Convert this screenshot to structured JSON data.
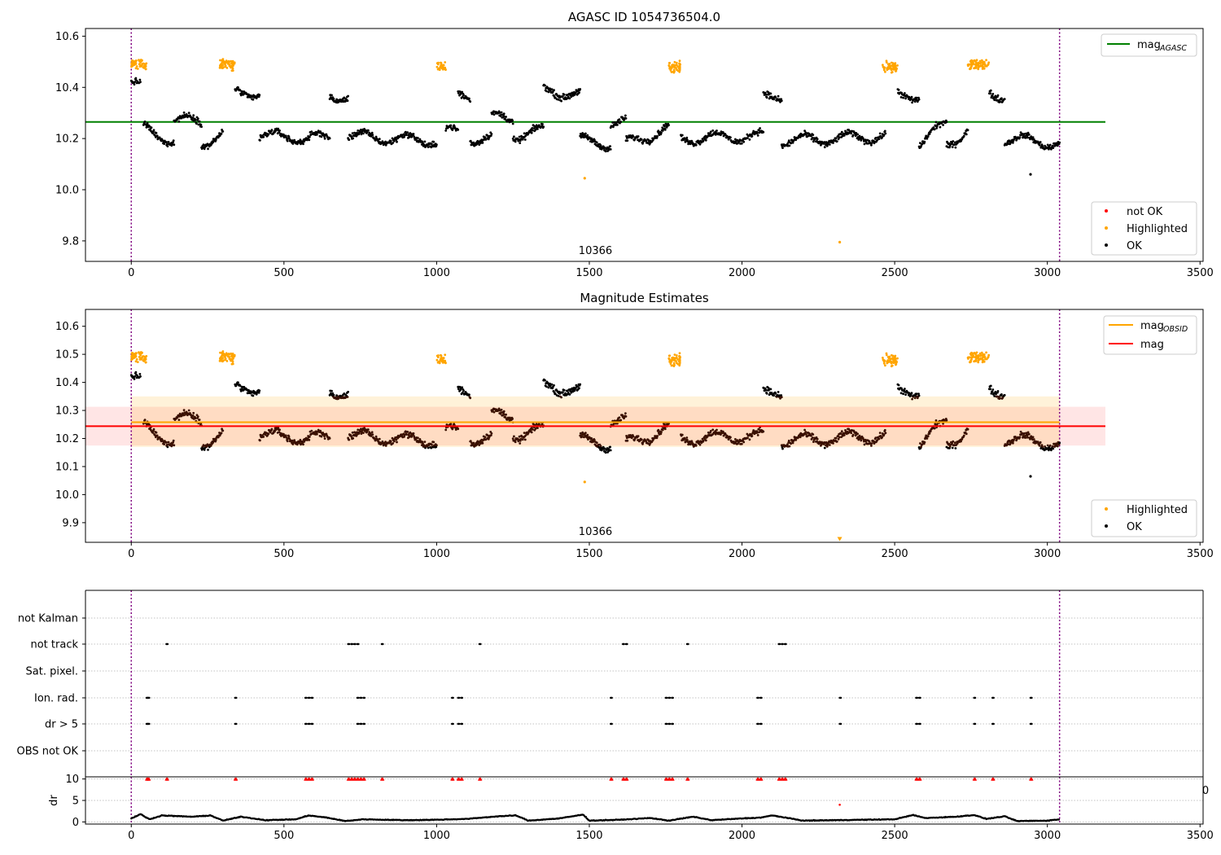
{
  "chart_data": [
    {
      "type": "scatter",
      "title": "AGASC ID 1054736504.0",
      "xlim": [
        -150,
        3510
      ],
      "ylim": [
        9.72,
        10.63
      ],
      "xticks": [
        0,
        500,
        1000,
        1500,
        2000,
        2500,
        3000,
        3500
      ],
      "yticks": [
        9.8,
        10.0,
        10.2,
        10.4,
        10.6
      ],
      "ytick_labels": [
        "9.8",
        "10.0",
        "10.2",
        "10.4",
        "10.6"
      ],
      "annotation": "10366",
      "vlines": [
        0,
        3040
      ],
      "hline": {
        "name": "mag",
        "subscript": "AGASC",
        "y": 10.265,
        "x": [
          -150,
          3190
        ],
        "color": "#008000"
      },
      "legend_top": "top-right",
      "legend_bottom": "bottom-right",
      "legend_entries": [
        "not OK",
        "Highlighted",
        "OK"
      ],
      "series_colors": {
        "not OK": "#ff0000",
        "Highlighted": "#ffa500",
        "OK": "#000000"
      },
      "highlight_x_ranges": [
        [
          0,
          50
        ],
        [
          290,
          340
        ],
        [
          1000,
          1030
        ],
        [
          1760,
          1800
        ],
        [
          2460,
          2510
        ],
        [
          2740,
          2810
        ]
      ],
      "highlight_levels": [
        10.49,
        10.49,
        10.48,
        10.48,
        10.48,
        10.49
      ],
      "ok_segments": [
        {
          "x": [
            0,
            30
          ],
          "y": [
            10.42,
            10.4
          ]
        },
        {
          "x": [
            40,
            140
          ],
          "y": [
            10.24,
            10.19
          ]
        },
        {
          "x": [
            140,
            230
          ],
          "y": [
            10.27,
            10.27
          ]
        },
        {
          "x": [
            230,
            300
          ],
          "y": [
            10.18,
            10.22
          ]
        },
        {
          "x": [
            340,
            420
          ],
          "y": [
            10.38,
            10.38
          ]
        },
        {
          "x": [
            420,
            650
          ],
          "y": [
            10.21,
            10.2
          ]
        },
        {
          "x": [
            650,
            710
          ],
          "y": [
            10.36,
            10.37
          ]
        },
        {
          "x": [
            710,
            1000
          ],
          "y": [
            10.21,
            10.19
          ]
        },
        {
          "x": [
            1030,
            1070
          ],
          "y": [
            10.23,
            10.22
          ]
        },
        {
          "x": [
            1070,
            1110
          ],
          "y": [
            10.37,
            10.37
          ]
        },
        {
          "x": [
            1110,
            1180
          ],
          "y": [
            10.2,
            10.2
          ]
        },
        {
          "x": [
            1180,
            1250
          ],
          "y": [
            10.28,
            10.28
          ]
        },
        {
          "x": [
            1250,
            1350
          ],
          "y": [
            10.21,
            10.23
          ]
        },
        {
          "x": [
            1350,
            1470
          ],
          "y": [
            10.39,
            10.37
          ]
        },
        {
          "x": [
            1470,
            1570
          ],
          "y": [
            10.19,
            10.18
          ]
        },
        {
          "x": [
            1570,
            1620
          ],
          "y": [
            10.26,
            10.26
          ]
        },
        {
          "x": [
            1620,
            1760
          ],
          "y": [
            10.18,
            10.24
          ]
        },
        {
          "x": [
            1800,
            2070
          ],
          "y": [
            10.2,
            10.21
          ]
        },
        {
          "x": [
            2070,
            2130
          ],
          "y": [
            10.36,
            10.37
          ]
        },
        {
          "x": [
            2130,
            2470
          ],
          "y": [
            10.19,
            10.21
          ]
        },
        {
          "x": [
            2510,
            2580
          ],
          "y": [
            10.37,
            10.37
          ]
        },
        {
          "x": [
            2580,
            2670
          ],
          "y": [
            10.18,
            10.26
          ]
        },
        {
          "x": [
            2670,
            2740
          ],
          "y": [
            10.17,
            10.24
          ]
        },
        {
          "x": [
            2810,
            2860
          ],
          "y": [
            10.37,
            10.37
          ]
        },
        {
          "x": [
            2860,
            3040
          ],
          "y": [
            10.2,
            10.18
          ]
        }
      ],
      "outliers": [
        {
          "x": 1485,
          "y": 10.045,
          "series": "Highlighted"
        },
        {
          "x": 2320,
          "y": 9.795,
          "series": "Highlighted"
        },
        {
          "x": 2945,
          "y": 10.06,
          "series": "OK"
        }
      ]
    },
    {
      "type": "scatter",
      "title": "Magnitude Estimates",
      "xlim": [
        -150,
        3510
      ],
      "ylim": [
        9.83,
        10.66
      ],
      "xticks": [
        0,
        500,
        1000,
        1500,
        2000,
        2500,
        3000,
        3500
      ],
      "yticks": [
        9.9,
        10.0,
        10.1,
        10.2,
        10.3,
        10.4,
        10.5,
        10.6
      ],
      "ytick_labels": [
        "9.9",
        "10.0",
        "10.1",
        "10.2",
        "10.3",
        "10.4",
        "10.5",
        "10.6"
      ],
      "annotation": "10366",
      "vlines": [
        0,
        3040
      ],
      "lines": [
        {
          "name": "mag",
          "subscript": "OBSID",
          "y": 10.258,
          "x": [
            0,
            3040
          ],
          "band": [
            10.17,
            10.35
          ],
          "color": "#ffa500"
        },
        {
          "name": "mag",
          "subscript": "",
          "y": 10.244,
          "x": [
            -150,
            3190
          ],
          "band": [
            10.175,
            10.313
          ],
          "color": "#ff0000"
        }
      ],
      "legend_top": "top-right",
      "legend_bottom": "bottom-right",
      "legend_entries": [
        "Highlighted",
        "OK"
      ],
      "series_colors": {
        "Highlighted": "#ffa500",
        "OK": "#000000"
      },
      "outliers": [
        {
          "x": 1485,
          "y": 10.045,
          "series": "Highlighted"
        },
        {
          "x": 2320,
          "y": 9.84,
          "series": "Highlighted"
        },
        {
          "x": 2945,
          "y": 10.065,
          "series": "OK"
        }
      ]
    },
    {
      "type": "scatter",
      "xlim": [
        -150,
        3510
      ],
      "categories": [
        "not Kalman",
        "not track",
        "Sat. pixel.",
        "Ion. rad.",
        "dr > 5",
        "OBS not OK"
      ],
      "vlines": [
        0,
        3040
      ],
      "flag_points": {
        "not track": [
          115,
          710,
          720,
          730,
          740,
          820,
          1140,
          1610,
          1620,
          1820,
          2120,
          2130,
          2140
        ],
        "Ion. rad.": [
          50,
          55,
          340,
          570,
          580,
          590,
          740,
          750,
          760,
          1050,
          1070,
          1080,
          1570,
          1750,
          1760,
          1770,
          2050,
          2060,
          2320,
          2570,
          2580,
          2760,
          2820,
          2945
        ],
        "dr > 5": [
          50,
          55,
          340,
          570,
          580,
          590,
          740,
          750,
          760,
          1050,
          1070,
          1080,
          1570,
          1750,
          1760,
          1770,
          2050,
          2060,
          2320,
          2570,
          2580,
          2760,
          2820,
          2945
        ]
      }
    },
    {
      "type": "scatter",
      "ylabel": "dr",
      "xlim": [
        -150,
        3510
      ],
      "ylim": [
        -0.5,
        10.5
      ],
      "xticks": [
        0,
        500,
        1000,
        1500,
        2000,
        2500,
        3000,
        3500
      ],
      "yticks": [
        0,
        5,
        10
      ],
      "ytick_labels": [
        "0",
        "5",
        "10"
      ],
      "right_edge_label": "0",
      "vlines": [
        0,
        3040
      ],
      "clipped_points_x": [
        50,
        55,
        115,
        340,
        570,
        580,
        590,
        710,
        720,
        730,
        740,
        750,
        760,
        820,
        1050,
        1070,
        1080,
        1140,
        1570,
        1610,
        1620,
        1750,
        1760,
        1770,
        1820,
        2050,
        2060,
        2120,
        2130,
        2140,
        2570,
        2580,
        2760,
        2820,
        2945
      ],
      "single_point": {
        "x": 2320,
        "y": 4.0
      },
      "dr_profile_x": [
        0,
        30,
        60,
        100,
        200,
        260,
        300,
        360,
        440,
        540,
        580,
        640,
        700,
        760,
        900,
        1000,
        1100,
        1200,
        1260,
        1300,
        1400,
        1480,
        1500,
        1600,
        1700,
        1760,
        1840,
        1900,
        2000,
        2060,
        2100,
        2200,
        2300,
        2400,
        2500,
        2560,
        2600,
        2700,
        2760,
        2800,
        2860,
        2900,
        3000,
        3040
      ],
      "dr_profile_y": [
        0.8,
        1.8,
        0.6,
        1.5,
        1.2,
        1.5,
        0.3,
        1.2,
        0.4,
        0.6,
        1.5,
        1.0,
        0.2,
        0.6,
        0.4,
        0.5,
        0.7,
        1.3,
        1.5,
        0.3,
        0.8,
        1.7,
        0.3,
        0.5,
        0.9,
        0.3,
        1.2,
        0.4,
        0.8,
        1.0,
        1.5,
        0.3,
        0.4,
        0.5,
        0.6,
        1.6,
        0.9,
        1.2,
        1.6,
        0.7,
        1.3,
        0.2,
        0.3,
        0.6
      ]
    }
  ]
}
